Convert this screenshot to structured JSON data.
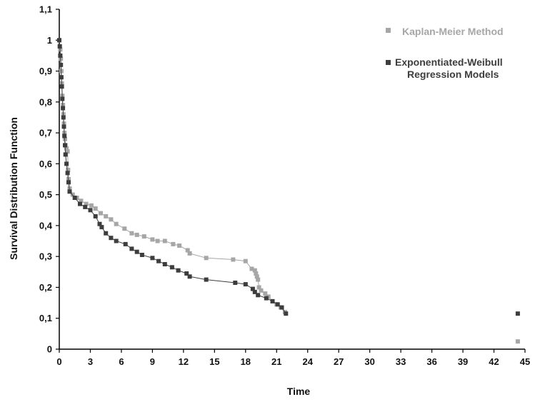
{
  "chart_data": {
    "type": "line",
    "title": "",
    "xlabel": "Time",
    "ylabel": "Survival Distribution Function",
    "xlim": [
      0,
      45
    ],
    "ylim": [
      0,
      1.1
    ],
    "x_ticks": [
      "0",
      "3",
      "6",
      "9",
      "12",
      "15",
      "18",
      "21",
      "24",
      "27",
      "30",
      "33",
      "36",
      "39",
      "42",
      "45"
    ],
    "y_ticks": [
      "0",
      "0,1",
      "0,2",
      "0,3",
      "0,4",
      "0,5",
      "0,6",
      "0,7",
      "0,8",
      "0,9",
      "1",
      "1,1"
    ],
    "grid": false,
    "legend_position": "top-right",
    "series": [
      {
        "name": "Kaplan-Meier Method",
        "color": "#a6a6a6",
        "points": [
          [
            0,
            1
          ],
          [
            0.1,
            0.97
          ],
          [
            0.15,
            0.94
          ],
          [
            0.2,
            0.9
          ],
          [
            0.25,
            0.86
          ],
          [
            0.3,
            0.82
          ],
          [
            0.35,
            0.79
          ],
          [
            0.4,
            0.76
          ],
          [
            0.45,
            0.73
          ],
          [
            0.5,
            0.7
          ],
          [
            0.55,
            0.68
          ],
          [
            0.6,
            0.66
          ],
          [
            0.7,
            0.65
          ],
          [
            0.8,
            0.64
          ],
          [
            0.85,
            0.58
          ],
          [
            0.9,
            0.55
          ],
          [
            1,
            0.52
          ],
          [
            1.3,
            0.5
          ],
          [
            1.7,
            0.49
          ],
          [
            2.1,
            0.48
          ],
          [
            2.6,
            0.47
          ],
          [
            3.1,
            0.465
          ],
          [
            3.5,
            0.455
          ],
          [
            4,
            0.44
          ],
          [
            4.5,
            0.43
          ],
          [
            5,
            0.42
          ],
          [
            5.5,
            0.405
          ],
          [
            6.3,
            0.39
          ],
          [
            7,
            0.375
          ],
          [
            7.5,
            0.37
          ],
          [
            8.2,
            0.365
          ],
          [
            9,
            0.355
          ],
          [
            9.5,
            0.35
          ],
          [
            10.2,
            0.35
          ],
          [
            11,
            0.34
          ],
          [
            11.6,
            0.335
          ],
          [
            12.4,
            0.32
          ],
          [
            12.6,
            0.31
          ],
          [
            14.2,
            0.295
          ],
          [
            16.8,
            0.29
          ],
          [
            18,
            0.285
          ],
          [
            18.6,
            0.26
          ],
          [
            18.9,
            0.255
          ],
          [
            19,
            0.245
          ],
          [
            19.1,
            0.235
          ],
          [
            19.2,
            0.225
          ],
          [
            19.3,
            0.2
          ],
          [
            19.5,
            0.19
          ],
          [
            19.9,
            0.18
          ],
          [
            20.2,
            0.17
          ],
          [
            20.6,
            0.155
          ],
          [
            21,
            0.145
          ],
          [
            21.4,
            0.135
          ],
          [
            21.8,
            0.12
          ]
        ],
        "outlier": [
          44.3,
          0.025
        ]
      },
      {
        "name": "Exponentiated-Weibull Regression Models",
        "color": "#3d3d3d",
        "points": [
          [
            0,
            1
          ],
          [
            0.05,
            0.98
          ],
          [
            0.1,
            0.95
          ],
          [
            0.15,
            0.92
          ],
          [
            0.2,
            0.88
          ],
          [
            0.25,
            0.85
          ],
          [
            0.3,
            0.81
          ],
          [
            0.35,
            0.78
          ],
          [
            0.4,
            0.75
          ],
          [
            0.45,
            0.72
          ],
          [
            0.5,
            0.69
          ],
          [
            0.55,
            0.66
          ],
          [
            0.6,
            0.63
          ],
          [
            0.7,
            0.6
          ],
          [
            0.8,
            0.57
          ],
          [
            0.9,
            0.54
          ],
          [
            1,
            0.51
          ],
          [
            1.5,
            0.49
          ],
          [
            2,
            0.47
          ],
          [
            2.5,
            0.46
          ],
          [
            3,
            0.45
          ],
          [
            3.5,
            0.43
          ],
          [
            3.9,
            0.405
          ],
          [
            4.1,
            0.395
          ],
          [
            4.5,
            0.375
          ],
          [
            5,
            0.36
          ],
          [
            5.5,
            0.35
          ],
          [
            6.4,
            0.34
          ],
          [
            7,
            0.325
          ],
          [
            7.5,
            0.315
          ],
          [
            8,
            0.305
          ],
          [
            9,
            0.295
          ],
          [
            9.6,
            0.285
          ],
          [
            10.2,
            0.275
          ],
          [
            10.9,
            0.265
          ],
          [
            11.5,
            0.255
          ],
          [
            12.3,
            0.245
          ],
          [
            12.6,
            0.235
          ],
          [
            14.2,
            0.225
          ],
          [
            17,
            0.215
          ],
          [
            18,
            0.21
          ],
          [
            18.7,
            0.195
          ],
          [
            18.9,
            0.185
          ],
          [
            19.2,
            0.175
          ],
          [
            20,
            0.165
          ],
          [
            20.6,
            0.155
          ],
          [
            21.1,
            0.145
          ],
          [
            21.5,
            0.135
          ],
          [
            21.9,
            0.115
          ]
        ],
        "outlier": [
          44.3,
          0.115
        ]
      }
    ]
  }
}
